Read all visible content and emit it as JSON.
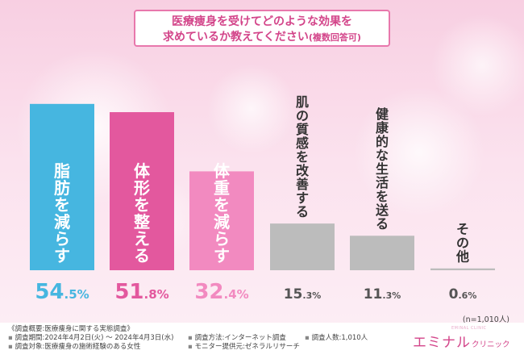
{
  "title": {
    "line1": "医療痩身を受けてどのような効果を",
    "line2": "求めているか教えてください",
    "line2_suffix": "(複数回答可)"
  },
  "chart_data": {
    "type": "bar",
    "categories": [
      "脂肪を減らす",
      "体形を整える",
      "体重を減らす",
      "肌の質感を改善する",
      "健康的な生活を送る",
      "その他"
    ],
    "values": [
      54.5,
      51.8,
      32.4,
      15.3,
      11.3,
      0.6
    ],
    "value_labels": [
      {
        "int": "54",
        "dec": ".5",
        "unit": "%"
      },
      {
        "int": "51",
        "dec": ".8",
        "unit": "%"
      },
      {
        "int": "32",
        "dec": ".4",
        "unit": "%"
      },
      {
        "int": "15",
        "dec": ".3",
        "unit": "%"
      },
      {
        "int": "11",
        "dec": ".3",
        "unit": "%"
      },
      {
        "int": "0",
        "dec": ".6",
        "unit": "%"
      }
    ],
    "unit": "%",
    "ylim": [
      0,
      60
    ],
    "colors": [
      "#46b6e0",
      "#e3589e",
      "#f28ac0",
      "#bcbcbc",
      "#bcbcbc",
      "#bcbcbc"
    ],
    "label_colors": [
      "#ffffff",
      "#ffffff",
      "#ffffff",
      "#333333",
      "#333333",
      "#333333"
    ],
    "value_colors": [
      "#46b6e0",
      "#e3589e",
      "#f28ac0",
      "#555555",
      "#555555",
      "#555555"
    ]
  },
  "n_note": "(n=1,010人)",
  "survey": {
    "title": "《調査概要:医療痩身に関する実態調査》",
    "period": "調査期間:2024年4月2日(火) ～ 2024年4月3日(水)",
    "target": "調査対象:医療痩身の施術経験のある女性",
    "method": "調査方法:インターネット調査",
    "provider": "モニター提供元:ゼネラルリサーチ",
    "count": "調査人数:1,010人"
  },
  "logo": {
    "main": "エミナル",
    "sub": "クリニック",
    "tiny": "EMINAL CLINIC"
  }
}
